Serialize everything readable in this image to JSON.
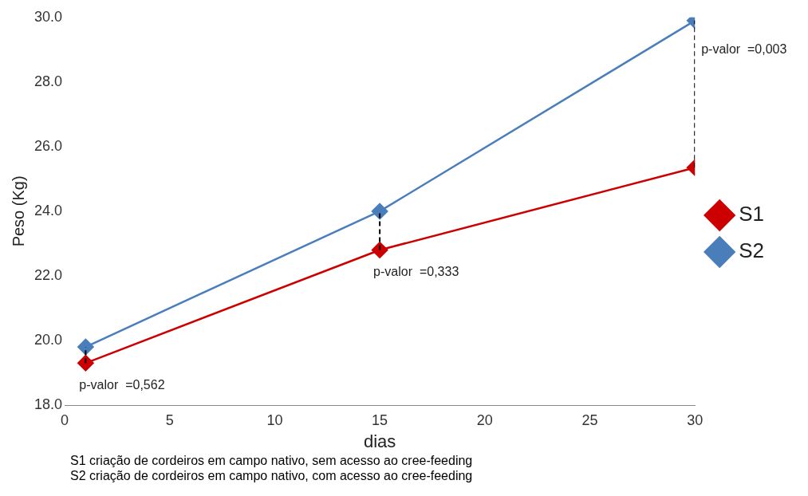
{
  "chart_data": {
    "type": "line",
    "xlabel": "dias",
    "ylabel": "Peso (Kg)",
    "x": [
      1,
      15,
      30
    ],
    "series": [
      {
        "name": "S1",
        "color": "#cc0000",
        "values": [
          19.3,
          22.8,
          25.35
        ]
      },
      {
        "name": "S2",
        "color": "#4a7ebb",
        "values": [
          19.8,
          24.0,
          29.9
        ]
      },
      {
        "color": "#000000",
        "x": [
          1,
          1
        ],
        "values": [
          19.3,
          19.8
        ],
        "line_style": "dashed",
        "marker": "none"
      },
      {
        "color": "#000000",
        "x": [
          15,
          15
        ],
        "values": [
          22.8,
          24.0
        ],
        "line_style": "dashed",
        "marker": "none"
      },
      {
        "color": "#000000",
        "x": [
          30,
          30
        ],
        "values": [
          25.35,
          29.9
        ],
        "line_style": "dashed",
        "marker": "none"
      }
    ],
    "xlim": [
      0,
      30
    ],
    "xticks": [
      0,
      5,
      10,
      15,
      20,
      25,
      30
    ],
    "ylim": [
      18,
      30
    ],
    "yticks": [
      {
        "value": 18,
        "label": "18.0"
      },
      {
        "value": 20,
        "label": "20.0"
      },
      {
        "value": 22,
        "label": "22.0"
      },
      {
        "value": 24,
        "label": "24.0"
      },
      {
        "value": 26,
        "label": "26.0"
      },
      {
        "value": 28,
        "label": "28.0"
      },
      {
        "value": 30,
        "label": "30.0"
      }
    ],
    "grid": false,
    "legend": "right",
    "marker": "diamond",
    "line_style": "solid",
    "annotations": [
      "p-valor  =0,562",
      "p-valor  =0,333",
      "p-valor  =0,003",
      "S1 criação de cordeiros em campo nativo, sem acesso ao cree-feeding",
      "S2 criação de cordeiros em campo nativo, com acesso ao cree-feeding"
    ]
  }
}
